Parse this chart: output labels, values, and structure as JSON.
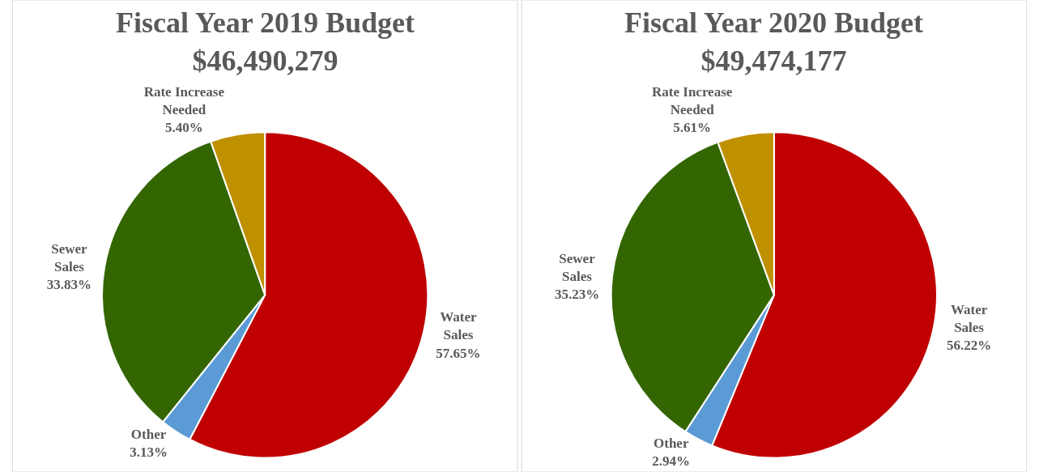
{
  "chart_data": [
    {
      "type": "pie",
      "title": "Fiscal Year 2019 Budget",
      "subtitle": "$46,490,279",
      "categories": [
        "Water Sales",
        "Other",
        "Sewer Sales",
        "Rate Increase Needed"
      ],
      "values": [
        57.65,
        3.13,
        33.83,
        5.4
      ],
      "value_labels": [
        "57.65%",
        "3.13%",
        "33.83%",
        "5.40%"
      ],
      "colors": [
        "#c00000",
        "#5b9bd5",
        "#336600",
        "#bf9000"
      ],
      "legend": false
    },
    {
      "type": "pie",
      "title": "Fiscal Year 2020 Budget",
      "subtitle": "$49,474,177",
      "categories": [
        "Water Sales",
        "Other",
        "Sewer Sales",
        "Rate Increase Needed"
      ],
      "values": [
        56.22,
        2.94,
        35.23,
        5.61
      ],
      "value_labels": [
        "56.22%",
        "2.94%",
        "35.23%",
        "5.61%"
      ],
      "colors": [
        "#c00000",
        "#5b9bd5",
        "#336600",
        "#bf9000"
      ],
      "legend": false
    }
  ]
}
